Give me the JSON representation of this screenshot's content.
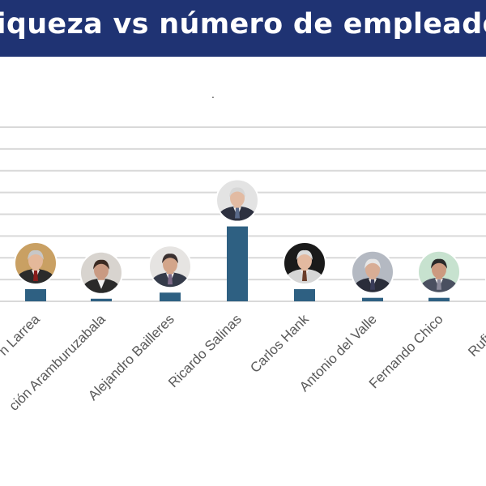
{
  "header": {
    "title": "riqueza vs número de empleados"
  },
  "colors": {
    "title_background": "#1f3373",
    "bar": "#2e6082",
    "grid": "#d9d9d9",
    "label": "#595959"
  },
  "chart_data": {
    "type": "bar",
    "title": "riqueza vs número de empleados",
    "subtitle": ".",
    "grid": true,
    "legend": "none",
    "categories": [
      "Germán Larrea",
      "María Asunción Aramburuzabala",
      "Alejandro Bailleres",
      "Ricardo Salinas",
      "Carlos Hank",
      "Antonio del Valle",
      "Fernando Chico",
      "Rufino Vigil"
    ],
    "visible_labels": [
      "n Larrea",
      "ción Aramburuzabala",
      "Alejandro Bailleres",
      "Ricardo Salinas",
      "Carlos Hank",
      "Antonio del Valle",
      "Fernando Chico",
      "Rufino V"
    ],
    "series": [
      {
        "values": [
          14,
          3,
          10,
          86,
          14,
          4,
          4,
          2
        ]
      }
    ],
    "ylim": [
      0,
      200
    ],
    "point_images": [
      "portrait-germán-larrea",
      "portrait-maría-asunción-aramburuzabala",
      "portrait-alejandro-bailleres",
      "portrait-ricardo-salinas",
      "portrait-carlos-hank",
      "portrait-antonio-del-valle",
      "portrait-fernando-chico",
      "portrait-rufino-vigil"
    ]
  }
}
